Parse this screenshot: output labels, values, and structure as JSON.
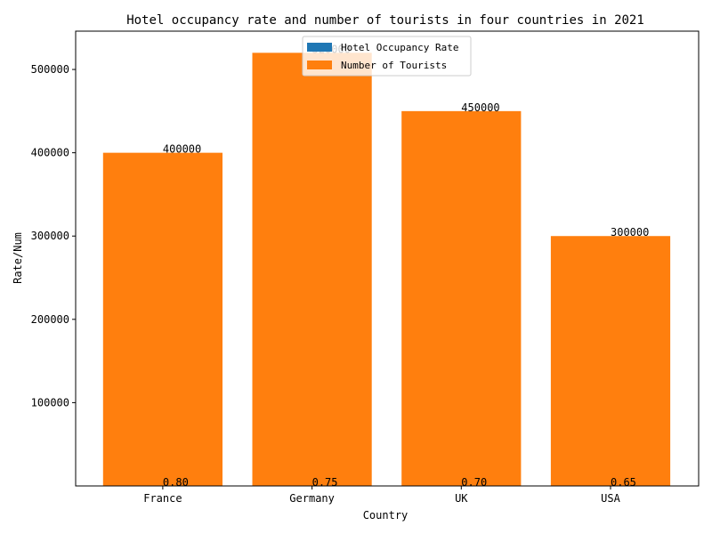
{
  "chart_data": {
    "type": "bar",
    "title": "Hotel occupancy rate and number of tourists in four countries in 2021",
    "xlabel": "Country",
    "ylabel": "Rate/Num",
    "categories": [
      "France",
      "Germany",
      "UK",
      "USA"
    ],
    "series": [
      {
        "name": "Hotel Occupancy Rate",
        "values": [
          0.8,
          0.75,
          0.7,
          0.65
        ],
        "color": "#1f77b4",
        "labels": [
          "0.80",
          "0.75",
          "0.70",
          "0.65"
        ]
      },
      {
        "name": "Number of Tourists",
        "values": [
          400000,
          520000,
          450000,
          300000
        ],
        "color": "#ff7f0e",
        "labels": [
          "400000",
          "520000",
          "450000",
          "300000"
        ]
      }
    ],
    "ylim": [
      0,
      546000
    ],
    "yticks": [
      100000,
      200000,
      300000,
      400000,
      500000
    ],
    "ytick_labels": [
      "100000",
      "200000",
      "300000",
      "400000",
      "500000"
    ],
    "legend": "top-center",
    "grid": false
  }
}
